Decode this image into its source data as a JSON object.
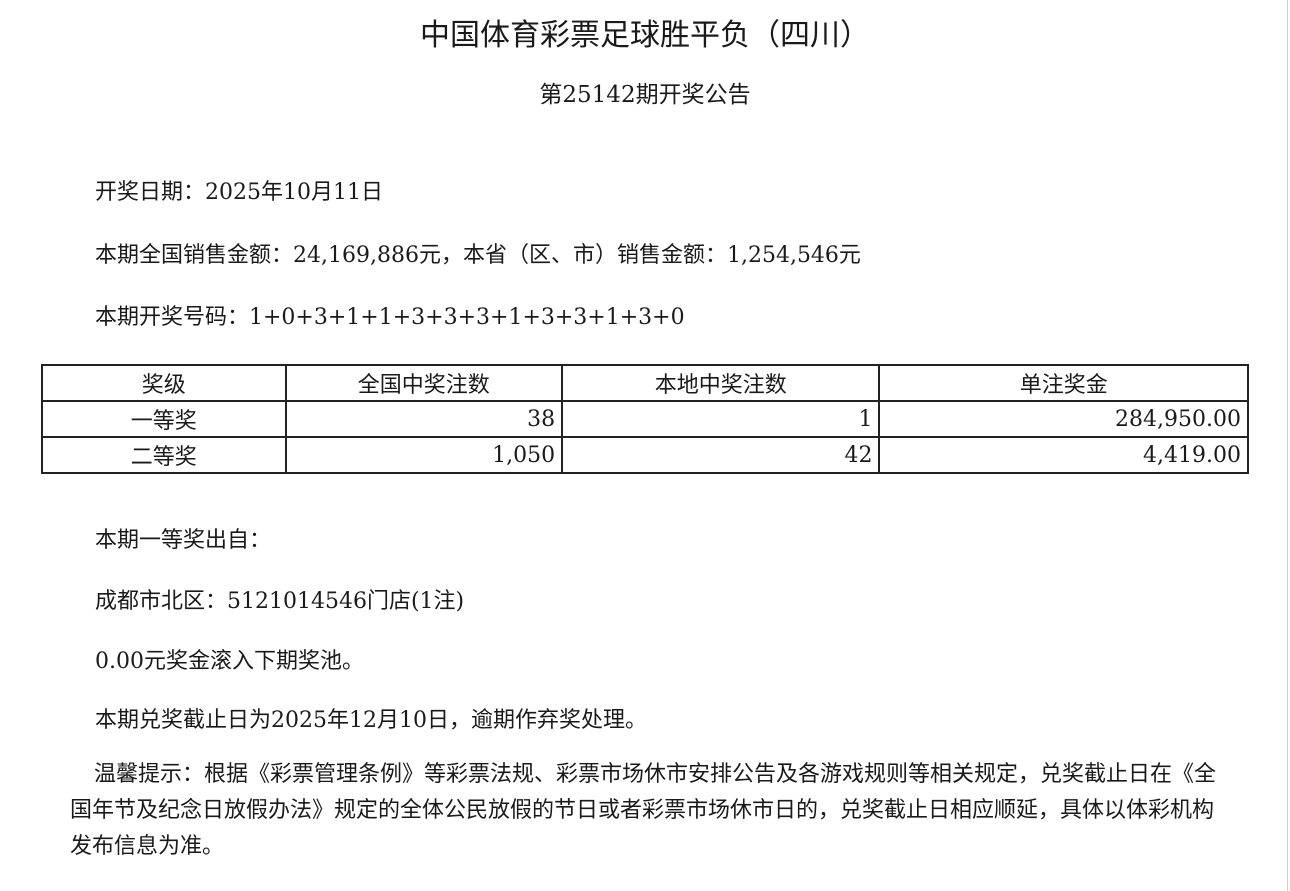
{
  "header": {
    "title": "中国体育彩票足球胜平负（四川）",
    "subtitle": "第25142期开奖公告"
  },
  "info": {
    "draw_date": "开奖日期：2025年10月11日",
    "sales": "本期全国销售金额：24,169,886元，本省（区、市）销售金额：1,254,546元",
    "numbers": "本期开奖号码：1+0+3+1+1+3+3+3+1+3+3+1+3+0"
  },
  "table": {
    "headers": [
      "奖级",
      "全国中奖注数",
      "本地中奖注数",
      "单注奖金"
    ],
    "rows": [
      [
        "一等奖",
        "38",
        "1",
        "284,950.00"
      ],
      [
        "二等奖",
        "1,050",
        "42",
        "4,419.00"
      ]
    ]
  },
  "details": {
    "first_prize_from": "本期一等奖出自：",
    "first_prize_store": "成都市北区：5121014546门店(1注)",
    "rollover": "0.00元奖金滚入下期奖池。",
    "deadline": "本期兑奖截止日为2025年12月10日，逾期作弃奖处理。",
    "notice": "温馨提示：根据《彩票管理条例》等彩票法规、彩票市场休市安排公告及各游戏规则等相关规定，兑奖截止日在《全国年节及纪念日放假办法》规定的全体公民放假的节日或者彩票市场休市日的，兑奖截止日相应顺延，具体以体彩机构发布信息为准。"
  }
}
